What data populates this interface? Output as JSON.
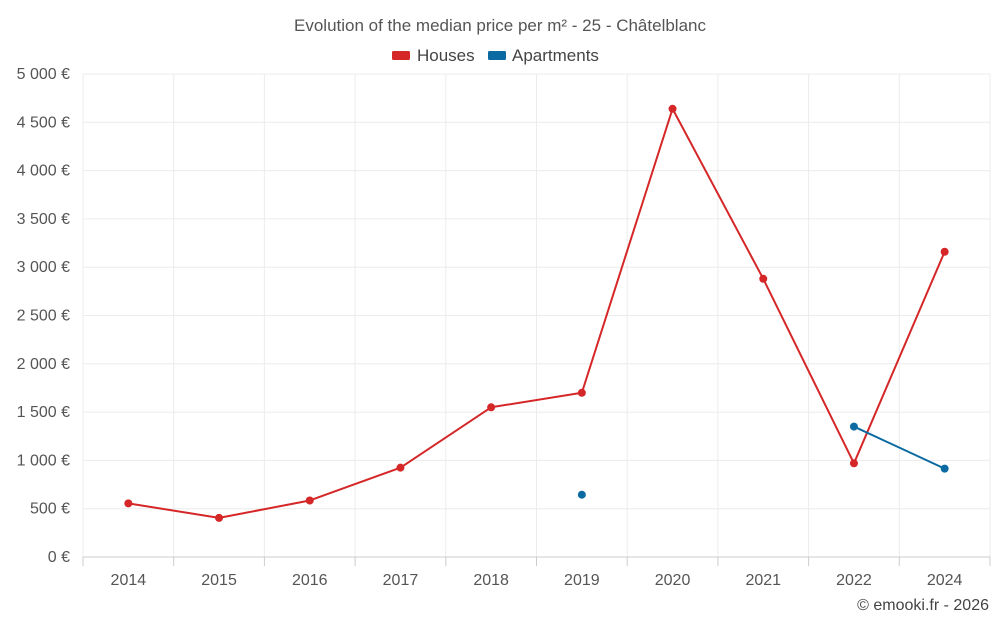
{
  "chart_data": {
    "type": "line",
    "title": "Evolution of the median price per m² - 25 - Châtelblanc",
    "x": [
      "2014",
      "2015",
      "2016",
      "2017",
      "2018",
      "2019",
      "2020",
      "2021",
      "2022",
      "2024"
    ],
    "ylim": [
      0,
      5000
    ],
    "yticks": [
      0,
      500,
      1000,
      1500,
      2000,
      2500,
      3000,
      3500,
      4000,
      4500,
      5000
    ],
    "ytick_labels": [
      "0 €",
      "500 €",
      "1 000 €",
      "1 500 €",
      "2 000 €",
      "2 500 €",
      "3 000 €",
      "3 500 €",
      "4 000 €",
      "4 500 €",
      "5 000 €"
    ],
    "grid": true,
    "legend_position": "top-center",
    "series": [
      {
        "name": "Houses",
        "color": "#d62728",
        "values": [
          555,
          405,
          585,
          925,
          1550,
          1700,
          4640,
          2880,
          970,
          3160
        ]
      },
      {
        "name": "Apartments",
        "color": "#0a6aa1",
        "values": [
          null,
          null,
          null,
          null,
          null,
          645,
          null,
          null,
          1350,
          915
        ]
      }
    ],
    "credit": "© emooki.fr - 2026"
  }
}
